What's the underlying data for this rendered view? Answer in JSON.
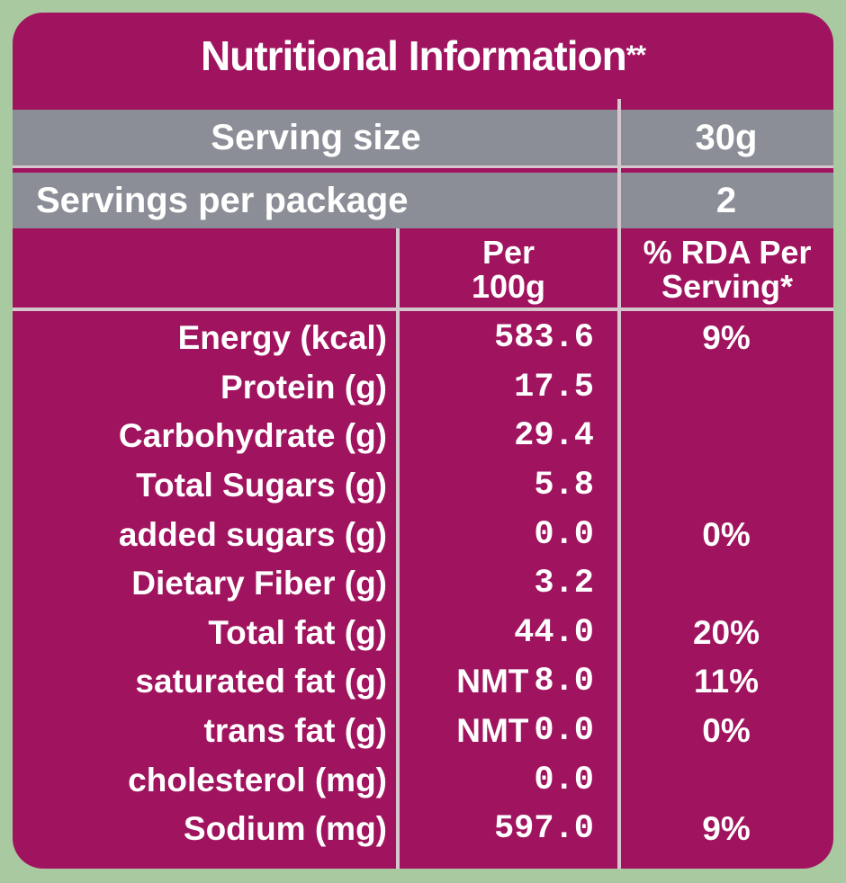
{
  "panel": {
    "title": "Nutritional Information",
    "title_mark": "**",
    "serving_size_label": "Serving size",
    "serving_size_value": "30g",
    "servings_label": "Servings per package",
    "servings_value": "2",
    "col_per_line1": "Per",
    "col_per_line2": "100g",
    "col_rda_line1": "% RDA Per",
    "col_rda_line2": "Serving*"
  },
  "rows": [
    {
      "name": "Energy (kcal)",
      "prefix": "",
      "per100g": "583.6",
      "rda": "9%"
    },
    {
      "name": "Protein (g)",
      "prefix": "",
      "per100g": "17.5",
      "rda": ""
    },
    {
      "name": "Carbohydrate (g)",
      "prefix": "",
      "per100g": "29.4",
      "rda": ""
    },
    {
      "name": "Total Sugars (g)",
      "prefix": "",
      "per100g": "5.8",
      "rda": ""
    },
    {
      "name": "added sugars (g)",
      "prefix": "",
      "per100g": "0.0",
      "rda": "0%"
    },
    {
      "name": "Dietary Fiber (g)",
      "prefix": "",
      "per100g": "3.2",
      "rda": ""
    },
    {
      "name": "Total fat (g)",
      "prefix": "",
      "per100g": "44.0",
      "rda": "20%"
    },
    {
      "name": "saturated fat (g)",
      "prefix": "NMT",
      "per100g": "8.0",
      "rda": "11%"
    },
    {
      "name": "trans fat (g)",
      "prefix": "NMT",
      "per100g": "0.0",
      "rda": "0%"
    },
    {
      "name": "cholesterol (mg)",
      "prefix": "",
      "per100g": "0.0",
      "rda": ""
    },
    {
      "name": "Sodium (mg)",
      "prefix": "",
      "per100g": "597.0",
      "rda": "9%"
    }
  ],
  "colors": {
    "background": "#a9c9a0",
    "panel": "#a0145f",
    "gray_bar": "#8b8e96",
    "text": "#ffffff"
  }
}
